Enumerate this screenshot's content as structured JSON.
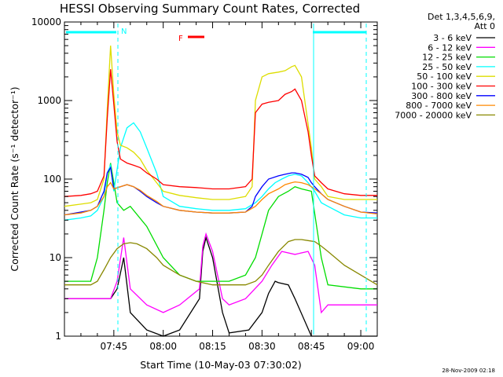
{
  "chart_data": {
    "type": "line",
    "title": "HESSI Observing Summary Count Rates, Corrected",
    "xlabel": "Start Time (10-May-03 07:30:02)",
    "ylabel": "Corrected Count Rate (s⁻¹ detector⁻¹)",
    "y_scale": "log",
    "ylim": [
      1,
      10000
    ],
    "xlim": [
      "07:30",
      "09:05"
    ],
    "x_ticks": [
      "07:45",
      "08:00",
      "08:15",
      "08:30",
      "08:45",
      "09:00"
    ],
    "y_ticks": [
      "1",
      "10",
      "100",
      "1000",
      "10000"
    ],
    "legend_header": [
      "Det 1,3,4,5,6,9,",
      "Att 0"
    ],
    "legend_position": "right",
    "series": [
      {
        "name": "3 - 6 keV",
        "color": "#000000",
        "x": [
          0,
          9,
          14,
          16,
          18,
          20,
          25,
          30,
          35,
          41,
          42,
          43,
          45,
          48,
          50,
          56,
          60,
          62,
          64,
          65,
          68,
          70,
          75,
          78,
          80,
          95
        ],
        "y": [
          3,
          3,
          3,
          4,
          10,
          2,
          1.2,
          1,
          1.2,
          3,
          12,
          18,
          10,
          2,
          1.1,
          1.2,
          2,
          3.5,
          5,
          4.8,
          4.5,
          3,
          1,
          1,
          1,
          1
        ]
      },
      {
        "name": "6 - 12 keV",
        "color": "#ff00ff",
        "x": [
          0,
          9,
          14,
          16,
          18,
          20,
          25,
          30,
          35,
          41,
          42,
          43,
          45,
          48,
          50,
          55,
          60,
          63,
          66,
          70,
          74,
          76,
          78,
          80,
          95
        ],
        "y": [
          3,
          3,
          3,
          5,
          18,
          4,
          2.5,
          2,
          2.5,
          4,
          14,
          20,
          12,
          3,
          2.5,
          3,
          5,
          8,
          12,
          11,
          12,
          8,
          2,
          2.5,
          2.5
        ]
      },
      {
        "name": "12 - 25 keV",
        "color": "#00dd00",
        "x": [
          0,
          5,
          8,
          10,
          12,
          13,
          14,
          16,
          18,
          20,
          25,
          30,
          35,
          40,
          45,
          50,
          55,
          58,
          60,
          62,
          65,
          68,
          70,
          72,
          75,
          78,
          80,
          90,
          95
        ],
        "y": [
          5,
          5,
          5,
          10,
          40,
          90,
          160,
          50,
          40,
          45,
          25,
          10,
          6,
          5,
          5,
          5,
          6,
          10,
          20,
          40,
          60,
          70,
          80,
          75,
          70,
          10,
          4.5,
          4,
          4
        ]
      },
      {
        "name": "25 - 50 keV",
        "color": "#00ffff",
        "x": [
          0,
          5,
          8,
          10,
          12,
          13,
          14,
          15,
          17,
          19,
          21,
          23,
          25,
          28,
          30,
          35,
          40,
          45,
          50,
          55,
          58,
          60,
          62,
          64,
          66,
          68,
          70,
          72,
          74,
          76,
          78,
          80,
          85,
          90,
          95
        ],
        "y": [
          30,
          32,
          34,
          40,
          60,
          120,
          150,
          70,
          250,
          450,
          520,
          400,
          250,
          120,
          60,
          45,
          42,
          40,
          40,
          42,
          50,
          60,
          75,
          90,
          100,
          110,
          115,
          110,
          90,
          70,
          50,
          45,
          35,
          32,
          32
        ]
      },
      {
        "name": "50 - 100 keV",
        "color": "#dddd00",
        "x": [
          0,
          5,
          8,
          10,
          12,
          13,
          14,
          15,
          16,
          17,
          19,
          21,
          23,
          25,
          28,
          30,
          35,
          40,
          45,
          50,
          55,
          57,
          58,
          60,
          62,
          65,
          67,
          69,
          70,
          72,
          74,
          75,
          76,
          78,
          80,
          85,
          90,
          95
        ],
        "y": [
          45,
          48,
          50,
          55,
          100,
          800,
          5000,
          1200,
          400,
          270,
          250,
          220,
          180,
          130,
          90,
          70,
          62,
          58,
          55,
          55,
          60,
          80,
          1000,
          2000,
          2200,
          2300,
          2400,
          2700,
          2800,
          2000,
          500,
          250,
          100,
          80,
          60,
          55,
          55,
          55
        ]
      },
      {
        "name": "100 - 300 keV",
        "color": "#ff0000",
        "x": [
          0,
          5,
          8,
          10,
          12,
          13,
          14,
          15,
          16,
          17,
          19,
          21,
          23,
          25,
          28,
          30,
          35,
          40,
          45,
          50,
          55,
          57,
          58,
          60,
          62,
          65,
          67,
          69,
          70,
          72,
          74,
          75,
          76,
          78,
          80,
          85,
          90,
          95
        ],
        "y": [
          60,
          62,
          65,
          70,
          110,
          600,
          2500,
          900,
          300,
          180,
          160,
          150,
          140,
          120,
          100,
          85,
          80,
          78,
          75,
          75,
          80,
          100,
          700,
          900,
          950,
          1000,
          1200,
          1300,
          1400,
          1000,
          400,
          200,
          110,
          90,
          75,
          65,
          62,
          62
        ]
      },
      {
        "name": "300 - 800 keV",
        "color": "#0000ff",
        "x": [
          0,
          5,
          8,
          10,
          12,
          13,
          14,
          15,
          17,
          19,
          21,
          23,
          25,
          28,
          30,
          35,
          40,
          45,
          50,
          55,
          57,
          58,
          60,
          62,
          65,
          67,
          69,
          70,
          72,
          74,
          75,
          76,
          78,
          80,
          85,
          90,
          95
        ],
        "y": [
          35,
          38,
          40,
          45,
          70,
          120,
          140,
          75,
          80,
          85,
          80,
          70,
          60,
          50,
          45,
          40,
          38,
          37,
          37,
          38,
          45,
          60,
          80,
          100,
          110,
          115,
          120,
          120,
          115,
          105,
          90,
          80,
          65,
          55,
          45,
          38,
          37
        ]
      },
      {
        "name": "800 - 7000 keV",
        "color": "#ff8800",
        "x": [
          0,
          5,
          8,
          10,
          12,
          13,
          14,
          15,
          17,
          19,
          21,
          23,
          25,
          28,
          30,
          35,
          40,
          45,
          50,
          55,
          58,
          60,
          62,
          65,
          67,
          69,
          70,
          72,
          74,
          76,
          78,
          80,
          85,
          90,
          95
        ],
        "y": [
          35,
          37,
          40,
          45,
          60,
          80,
          90,
          75,
          80,
          85,
          80,
          72,
          62,
          52,
          45,
          40,
          38,
          37,
          37,
          38,
          45,
          55,
          65,
          75,
          85,
          90,
          92,
          90,
          85,
          75,
          65,
          55,
          45,
          38,
          36
        ]
      },
      {
        "name": "7000 - 20000 keV",
        "color": "#888800",
        "x": [
          0,
          5,
          8,
          10,
          12,
          14,
          16,
          18,
          20,
          22,
          25,
          28,
          30,
          35,
          40,
          45,
          50,
          55,
          58,
          60,
          62,
          65,
          68,
          70,
          72,
          74,
          76,
          78,
          80,
          85,
          90,
          95
        ],
        "y": [
          4.5,
          4.5,
          4.5,
          5,
          7,
          10,
          13,
          15,
          15.5,
          15,
          13,
          10,
          8,
          6,
          5,
          4.5,
          4.5,
          4.5,
          5,
          6,
          8,
          12,
          16,
          17,
          17,
          16.5,
          16,
          14,
          12,
          8,
          6,
          4.5
        ]
      }
    ],
    "annotations": [
      {
        "label": "N",
        "color": "#00ffff"
      },
      {
        "label": "F",
        "color": "#ff0000"
      }
    ],
    "timestamp": "28-Nov-2009 02:18"
  }
}
